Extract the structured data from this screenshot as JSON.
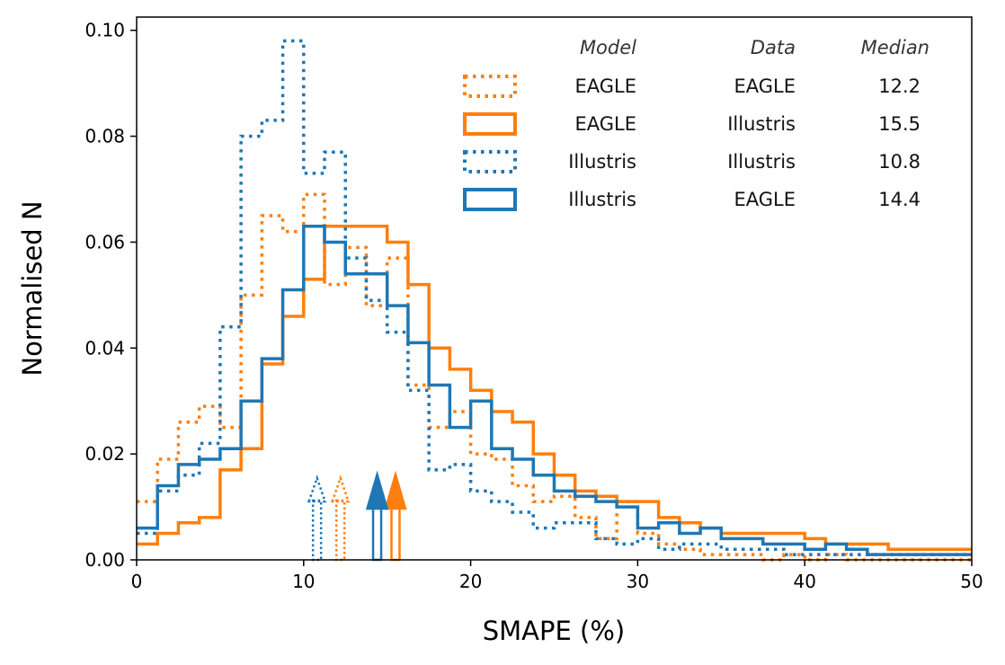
{
  "chart_data": {
    "type": "histogram",
    "title": "",
    "xlabel": "SMAPE (%)",
    "ylabel": "Normalised N",
    "xlim": [
      0,
      50
    ],
    "ylim": [
      0,
      0.1025
    ],
    "xticks": [
      0,
      10,
      20,
      30,
      40,
      50
    ],
    "xtick_labels": [
      "0",
      "10",
      "20",
      "30",
      "40",
      "50"
    ],
    "yticks": [
      0,
      0.02,
      0.04,
      0.06,
      0.08,
      0.1
    ],
    "ytick_labels": [
      "0.00",
      "0.02",
      "0.04",
      "0.06",
      "0.08",
      "0.10"
    ],
    "grid": false,
    "bin_edges": [
      0,
      1.25,
      2.5,
      3.75,
      5,
      6.25,
      7.5,
      8.75,
      10,
      11.25,
      12.5,
      13.75,
      15,
      16.25,
      17.5,
      18.75,
      20,
      21.25,
      22.5,
      23.75,
      25,
      26.25,
      27.5,
      28.75,
      30,
      31.25,
      32.5,
      33.75,
      35,
      36.25,
      37.5,
      38.75,
      40,
      41.25,
      42.5,
      43.75,
      45,
      46.25,
      47.5,
      48.75,
      50
    ],
    "legend": {
      "position": "top-right",
      "headers": {
        "model": "Model",
        "data": "Data",
        "median": "Median"
      }
    },
    "series": [
      {
        "name": "EAGLE on EAGLE",
        "model": "EAGLE",
        "data": "EAGLE",
        "median": 12.2,
        "median_label": "12.2",
        "color": "#ff7f0e",
        "linestyle": "dotted",
        "values": [
          0.011,
          0.019,
          0.026,
          0.029,
          0.025,
          0.05,
          0.065,
          0.062,
          0.069,
          0.052,
          0.059,
          0.048,
          0.057,
          0.033,
          0.025,
          0.028,
          0.02,
          0.019,
          0.014,
          0.011,
          0.012,
          0.008,
          0.004,
          0.011,
          0.005,
          0.003,
          0.002,
          0.001,
          0.001,
          0.001,
          0.0,
          0.001,
          0.0,
          0.001,
          0.0,
          0.0,
          0.0,
          0.0,
          0.0,
          0.0
        ]
      },
      {
        "name": "EAGLE on Illustris",
        "model": "EAGLE",
        "data": "Illustris",
        "median": 15.5,
        "median_label": "15.5",
        "color": "#ff7f0e",
        "linestyle": "solid",
        "values": [
          0.003,
          0.005,
          0.007,
          0.008,
          0.017,
          0.021,
          0.037,
          0.046,
          0.053,
          0.063,
          0.063,
          0.063,
          0.06,
          0.052,
          0.04,
          0.036,
          0.032,
          0.028,
          0.026,
          0.02,
          0.016,
          0.013,
          0.012,
          0.011,
          0.011,
          0.008,
          0.007,
          0.006,
          0.005,
          0.005,
          0.005,
          0.005,
          0.004,
          0.003,
          0.003,
          0.003,
          0.002,
          0.002,
          0.002,
          0.002
        ]
      },
      {
        "name": "Illustris on Illustris",
        "model": "Illustris",
        "data": "Illustris",
        "median": 10.8,
        "median_label": "10.8",
        "color": "#1f77b4",
        "linestyle": "dotted",
        "values": [
          0.005,
          0.013,
          0.016,
          0.022,
          0.044,
          0.08,
          0.083,
          0.098,
          0.073,
          0.077,
          0.057,
          0.049,
          0.043,
          0.032,
          0.017,
          0.018,
          0.013,
          0.011,
          0.009,
          0.006,
          0.007,
          0.007,
          0.004,
          0.003,
          0.004,
          0.002,
          0.003,
          0.003,
          0.002,
          0.002,
          0.002,
          0.001,
          0.001,
          0.001,
          0.001,
          0.001,
          0.001,
          0.001,
          0.001,
          0.001
        ]
      },
      {
        "name": "Illustris on EAGLE",
        "model": "Illustris",
        "data": "EAGLE",
        "median": 14.4,
        "median_label": "14.4",
        "color": "#1f77b4",
        "linestyle": "solid",
        "values": [
          0.006,
          0.014,
          0.018,
          0.019,
          0.021,
          0.03,
          0.038,
          0.051,
          0.063,
          0.06,
          0.054,
          0.054,
          0.048,
          0.041,
          0.033,
          0.025,
          0.03,
          0.021,
          0.019,
          0.016,
          0.013,
          0.012,
          0.011,
          0.01,
          0.006,
          0.007,
          0.005,
          0.006,
          0.004,
          0.004,
          0.003,
          0.003,
          0.002,
          0.003,
          0.002,
          0.001,
          0.001,
          0.001,
          0.001,
          0.001
        ]
      }
    ]
  }
}
